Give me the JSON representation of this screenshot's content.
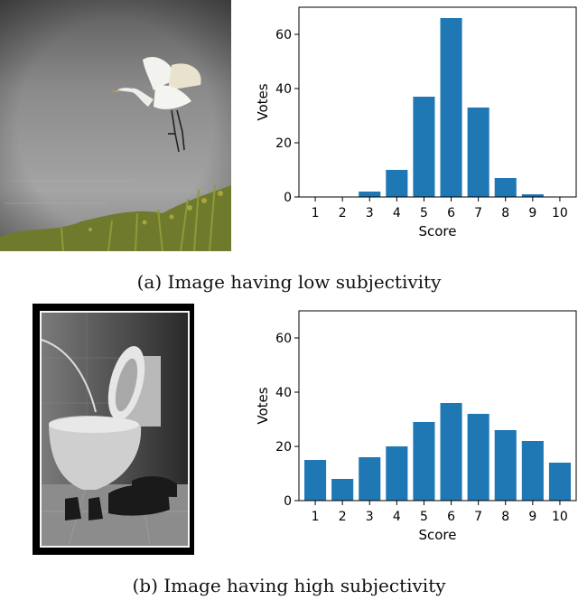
{
  "captions": {
    "a": "(a) Image having low subjectivity",
    "b": "(b) Image having high subjectivity"
  },
  "colors": {
    "bar": "#1f77b4"
  },
  "chart_data": [
    {
      "type": "bar",
      "categories": [
        "1",
        "2",
        "3",
        "4",
        "5",
        "6",
        "7",
        "8",
        "9",
        "10"
      ],
      "values": [
        0,
        0,
        2,
        10,
        37,
        66,
        33,
        7,
        1,
        0
      ],
      "xlabel": "Score",
      "ylabel": "Votes",
      "ylim": [
        0,
        70
      ],
      "yticks": [
        0,
        20,
        40,
        60
      ],
      "grid": false
    },
    {
      "type": "bar",
      "categories": [
        "1",
        "2",
        "3",
        "4",
        "5",
        "6",
        "7",
        "8",
        "9",
        "10"
      ],
      "values": [
        15,
        8,
        16,
        20,
        29,
        36,
        32,
        26,
        22,
        14
      ],
      "xlabel": "Score",
      "ylabel": "Votes",
      "ylim": [
        0,
        70
      ],
      "yticks": [
        0,
        20,
        40,
        60
      ],
      "grid": false
    }
  ]
}
